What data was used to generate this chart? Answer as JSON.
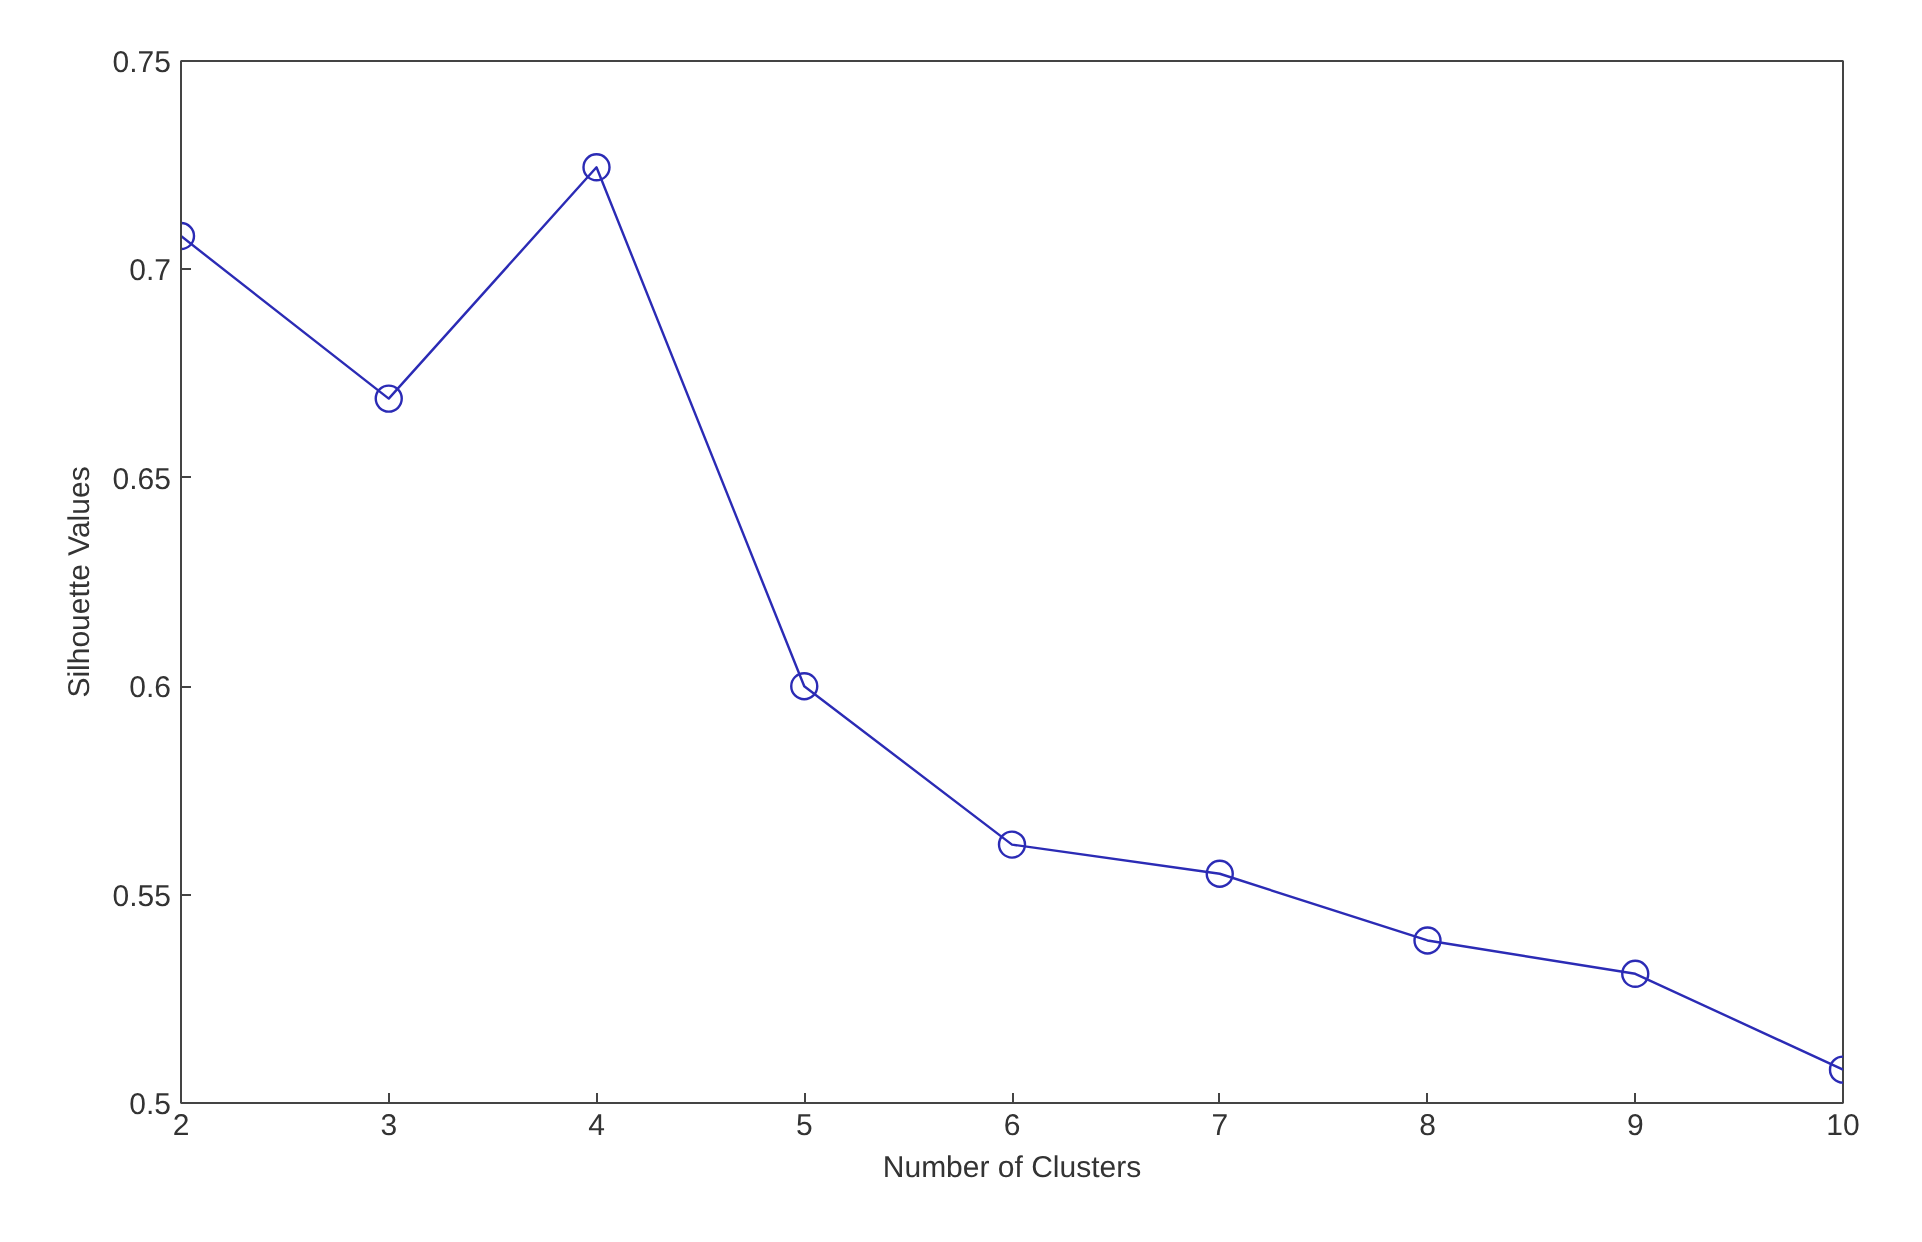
{
  "chart_data": {
    "type": "line",
    "xlabel": "Number of Clusters",
    "ylabel": "Silhouette Values",
    "x": [
      2,
      3,
      4,
      5,
      6,
      7,
      8,
      9,
      10
    ],
    "series": [
      {
        "color": "#2b2bb5",
        "values": [
          0.708,
          0.669,
          0.7245,
          0.6,
          0.562,
          0.555,
          0.539,
          0.531,
          0.508
        ]
      }
    ],
    "xlim": [
      2,
      10
    ],
    "xticks": [
      2,
      3,
      4,
      5,
      6,
      7,
      8,
      9,
      10
    ],
    "ylim": [
      0.5,
      0.75
    ],
    "yticks": [
      0.5,
      0.55,
      0.6,
      0.65,
      0.7,
      0.75
    ],
    "marker": "circle",
    "line_style": "solid",
    "grid": false
  }
}
